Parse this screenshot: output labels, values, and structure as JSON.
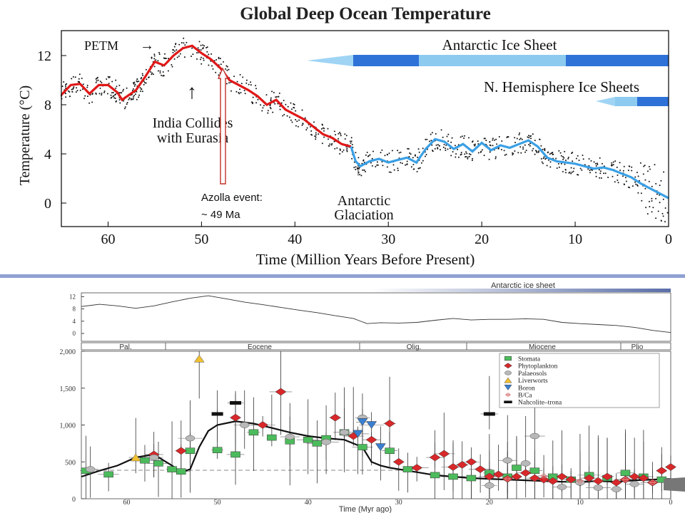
{
  "chart_data": [
    {
      "type": "line",
      "title": "Global Deep Ocean Temperature",
      "xlabel": "Time (Million Years Before Present)",
      "ylabel": "Temperature (°C)",
      "xlim": [
        65,
        0
      ],
      "ylim": [
        -1.5,
        14
      ],
      "x_ticks": [
        60,
        50,
        40,
        30,
        20,
        10,
        0
      ],
      "y_ticks": [
        0,
        4,
        8,
        12
      ],
      "series": [
        {
          "color": "#e01818",
          "x": [
            65,
            64,
            63,
            62,
            61,
            60,
            59,
            58.5,
            57,
            56,
            55,
            54,
            53,
            52,
            51,
            50,
            49,
            48,
            47,
            46,
            45,
            44,
            43,
            42,
            41,
            40,
            39,
            38,
            37,
            36,
            35,
            34
          ],
          "y": [
            8.8,
            9.6,
            9.7,
            8.9,
            9.6,
            9.6,
            9.0,
            8.4,
            9.2,
            10.3,
            11.5,
            11.2,
            12.0,
            12.6,
            12.8,
            12.2,
            11.7,
            11.0,
            10.0,
            9.6,
            9.2,
            8.7,
            8.0,
            8.4,
            7.6,
            7.2,
            6.8,
            6.2,
            5.6,
            5.3,
            4.8,
            4.6
          ]
        },
        {
          "color": "#3aa0e6",
          "x": [
            34,
            33.5,
            33,
            32,
            31,
            30,
            29,
            28,
            27,
            26,
            25,
            24,
            23,
            22,
            21,
            20,
            19,
            18,
            17,
            16,
            15,
            14,
            13,
            12,
            11,
            10,
            9,
            8,
            7,
            6,
            5,
            4,
            3,
            2,
            1,
            0
          ],
          "y": [
            4.6,
            3.4,
            3.0,
            3.4,
            3.6,
            3.3,
            3.5,
            3.7,
            3.3,
            4.4,
            5.2,
            5.0,
            4.4,
            4.8,
            4.2,
            4.9,
            4.3,
            4.7,
            4.5,
            4.8,
            5.1,
            4.6,
            3.7,
            3.4,
            3.3,
            3.2,
            3.0,
            2.8,
            2.9,
            2.7,
            2.4,
            2.1,
            1.6,
            1.2,
            0.8,
            0.4
          ]
        }
      ],
      "annotations": [
        {
          "text": "PETM",
          "x": 55.5,
          "arrow": "→"
        },
        {
          "text": "India Collides",
          "text2": "with Eurasia",
          "arrow": "↑",
          "x": 51
        },
        {
          "text": "Antarctic",
          "text2": "Glaciation",
          "arrow": "↑",
          "x": 33.5
        },
        {
          "text": "Azolla event:",
          "text2": "~ 49 Ma",
          "x": 48
        }
      ],
      "bands": [
        {
          "label": "Antarctic Ice Sheet",
          "from": 34,
          "to": 0
        },
        {
          "label": "N. Hemisphere Ice Sheets",
          "from": 3.5,
          "to": 0
        }
      ]
    },
    {
      "type": "line",
      "title": "Antarctic ice sheet",
      "xlim": [
        65,
        0
      ],
      "ylim": [
        0,
        12
      ],
      "y_ticks": [
        0,
        4,
        8,
        12
      ],
      "x": [
        65,
        63,
        61,
        59,
        57,
        55,
        53,
        51,
        49,
        47,
        45,
        43,
        41,
        39,
        37,
        35,
        33.5,
        32,
        30,
        28,
        26,
        24,
        22,
        20,
        18,
        16,
        14,
        12,
        10,
        8,
        6,
        4,
        2,
        0
      ],
      "y": [
        8.8,
        9.5,
        9.0,
        8.2,
        9.0,
        10.3,
        11.5,
        12.3,
        11.3,
        10.2,
        9.4,
        8.5,
        7.6,
        6.8,
        5.8,
        4.9,
        3.2,
        3.5,
        3.4,
        3.6,
        4.3,
        4.9,
        4.4,
        4.6,
        4.6,
        4.8,
        4.6,
        3.6,
        3.2,
        2.9,
        2.6,
        2.0,
        1.0,
        0.3
      ],
      "epochs": [
        "Pal.",
        "Eocene",
        "Olig.",
        "Miocene",
        "Plio"
      ]
    },
    {
      "type": "scatter",
      "xlabel": "Time (Myr ago)",
      "xlim": [
        65,
        0
      ],
      "ylim": [
        0,
        2000
      ],
      "x_ticks": [
        60,
        50,
        40,
        30,
        20,
        10,
        0
      ],
      "y_ticks": [
        0,
        500,
        "1,000",
        "1,500",
        "2,000"
      ],
      "legend": [
        {
          "label": "Stomata",
          "color": "#4cbb5c",
          "marker": "square"
        },
        {
          "label": "Phytoplankton",
          "color": "#d8282a",
          "marker": "diamond"
        },
        {
          "label": "Palaeosols",
          "color": "#b8b8b8",
          "marker": "ellipse"
        },
        {
          "label": "Liverworts",
          "color": "#f0c030",
          "marker": "triangle"
        },
        {
          "label": "Boron",
          "color": "#3a7fd0",
          "marker": "down-triangle"
        },
        {
          "label": "B/Ca",
          "color": "#d88080",
          "marker": "cross"
        },
        {
          "label": "Nahcolite–trona",
          "color": "#111111",
          "marker": "bar"
        }
      ],
      "series": [
        {
          "name": "Stomata",
          "x": [
            64.5,
            62,
            58,
            56.5,
            55,
            54,
            53,
            50,
            48,
            46,
            44,
            42,
            40,
            39,
            38,
            36,
            34,
            31,
            29,
            26,
            24,
            22,
            20,
            18,
            17,
            15,
            13,
            11,
            9,
            7,
            5,
            3,
            1
          ],
          "y": [
            380,
            330,
            520,
            480,
            400,
            370,
            650,
            660,
            600,
            900,
            830,
            780,
            800,
            750,
            820,
            900,
            700,
            650,
            400,
            320,
            300,
            280,
            350,
            300,
            420,
            380,
            300,
            260,
            320,
            280,
            350,
            300,
            260
          ]
        },
        {
          "name": "Phytoplankton",
          "x": [
            57,
            54,
            48,
            45,
            43,
            37,
            35,
            33,
            31,
            30,
            28,
            26,
            25,
            24,
            23,
            22,
            21,
            20,
            19,
            18,
            17,
            16,
            15,
            14,
            13,
            12,
            11,
            10,
            9,
            8,
            7,
            6,
            5,
            4,
            3,
            2,
            1,
            0
          ],
          "y": [
            600,
            650,
            1100,
            1000,
            1450,
            1100,
            850,
            800,
            1020,
            500,
            420,
            560,
            610,
            430,
            460,
            500,
            400,
            300,
            330,
            270,
            300,
            350,
            280,
            260,
            240,
            300,
            260,
            220,
            280,
            240,
            300,
            220,
            260,
            300,
            280,
            220,
            380,
            430
          ]
        },
        {
          "name": "Palaeosols",
          "x": [
            64,
            57,
            53,
            47,
            42,
            38,
            36,
            34,
            20,
            18,
            16,
            15,
            12,
            10,
            8,
            6,
            4
          ],
          "y": [
            400,
            560,
            820,
            1000,
            840,
            770,
            900,
            1100,
            180,
            520,
            480,
            850,
            160,
            220,
            150,
            130,
            200
          ]
        },
        {
          "name": "Liverworts",
          "x": [
            59,
            52
          ],
          "y": [
            560,
            1900
          ]
        },
        {
          "name": "Boron",
          "x": [
            34.5,
            34,
            33,
            32
          ],
          "y": [
            880,
            1040,
            1000,
            700
          ]
        },
        {
          "name": "B/Ca",
          "x": [
            18,
            14,
            10,
            5,
            2
          ],
          "y": [
            270,
            310,
            240,
            260,
            220
          ]
        },
        {
          "name": "Nahcolite–trona",
          "x": [
            50,
            48,
            20
          ],
          "y": [
            1150,
            1300,
            1150
          ]
        }
      ],
      "trend": {
        "x": [
          65,
          63,
          61,
          59,
          57,
          55,
          54,
          53,
          52,
          51,
          50,
          48,
          46,
          44,
          42,
          40,
          38,
          36,
          34,
          33,
          32,
          31,
          30,
          29,
          28,
          26,
          24,
          22,
          20,
          18,
          16,
          14,
          12,
          10,
          8,
          6,
          4,
          2,
          0
        ],
        "y": [
          300,
          380,
          450,
          560,
          600,
          450,
          360,
          400,
          700,
          920,
          1000,
          1050,
          1020,
          960,
          900,
          850,
          820,
          800,
          700,
          500,
          450,
          420,
          400,
          380,
          360,
          320,
          300,
          280,
          270,
          260,
          250,
          240,
          230,
          230,
          240,
          230,
          250,
          260,
          270
        ]
      }
    }
  ]
}
